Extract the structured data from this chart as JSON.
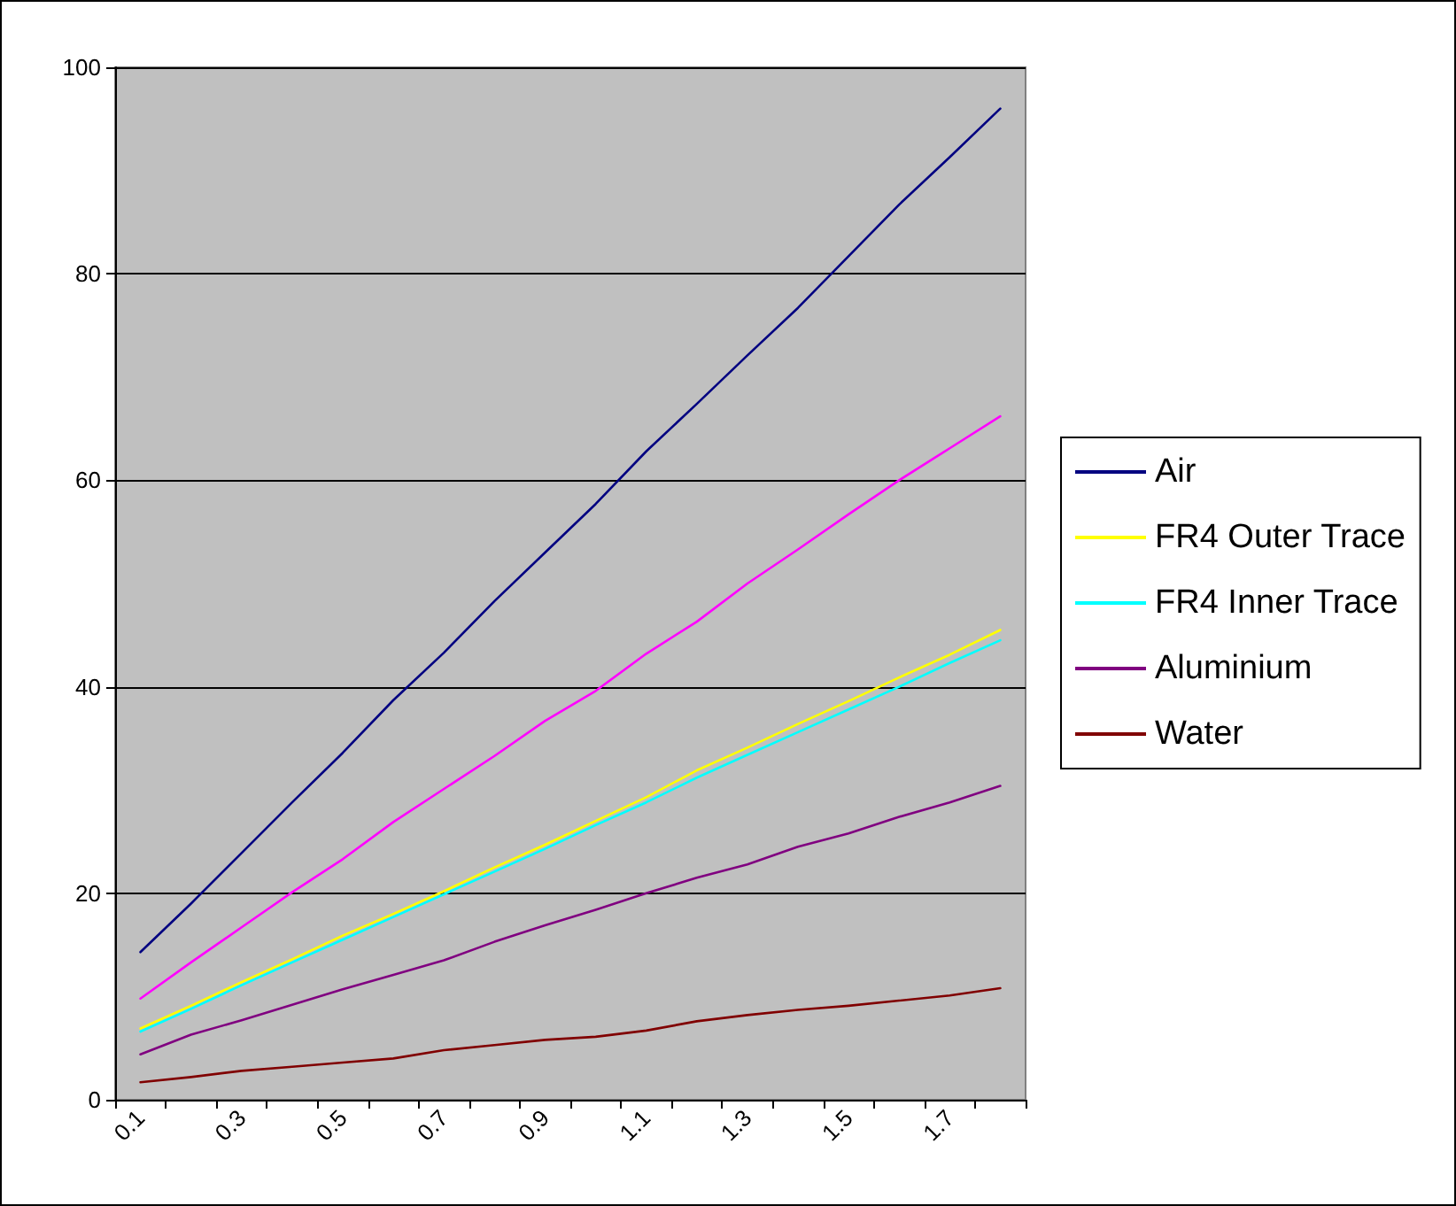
{
  "chart_data": {
    "type": "line",
    "categories": [
      "0.1",
      null,
      "0.3",
      null,
      "0.5",
      null,
      "0.7",
      null,
      "0.9",
      null,
      "1.1",
      null,
      "1.3",
      null,
      "1.5",
      null,
      "1.7",
      null
    ],
    "series": [
      {
        "name": "Air",
        "color": "#000080",
        "values": [
          14.3,
          19.0,
          23.9,
          28.8,
          33.6,
          38.7,
          43.3,
          48.3,
          53.0,
          57.7,
          62.8,
          67.4,
          72.1,
          76.7,
          81.7,
          86.7,
          91.3,
          96.0
        ]
      },
      {
        "color": "#ff00ff",
        "values": [
          9.8,
          13.3,
          16.7,
          20.1,
          23.3,
          26.9,
          30.1,
          33.3,
          36.7,
          39.6,
          43.2,
          46.3,
          50.0,
          53.3,
          56.7,
          60.0,
          63.1,
          66.2
        ]
      },
      {
        "name": "FR4 Outer Trace",
        "color": "#ffff00",
        "values": [
          6.9,
          9.1,
          11.4,
          13.6,
          15.9,
          18.0,
          20.2,
          22.5,
          24.7,
          27.0,
          29.3,
          31.9,
          34.1,
          36.4,
          38.6,
          40.9,
          43.1,
          45.5
        ]
      },
      {
        "name": "FR4 Inner Trace",
        "color": "#00ffff",
        "values": [
          6.6,
          8.8,
          11.1,
          13.3,
          15.5,
          17.7,
          19.9,
          22.1,
          24.3,
          26.6,
          28.8,
          31.2,
          33.4,
          35.6,
          37.8,
          40.0,
          42.3,
          44.5
        ]
      },
      {
        "name": "Aluminium",
        "color": "#800080",
        "values": [
          4.4,
          6.3,
          7.7,
          9.2,
          10.7,
          12.1,
          13.5,
          15.3,
          16.9,
          18.4,
          20.0,
          21.5,
          22.8,
          24.5,
          25.8,
          27.4,
          28.8,
          30.4
        ]
      },
      {
        "name": "Water",
        "color": "#800000",
        "values": [
          1.7,
          2.2,
          2.8,
          3.2,
          3.6,
          4.0,
          4.8,
          5.3,
          5.8,
          6.1,
          6.7,
          7.6,
          8.2,
          8.7,
          9.1,
          9.6,
          10.1,
          10.8
        ]
      }
    ],
    "ylim": [
      0,
      100
    ],
    "yticks": [
      0,
      20,
      40,
      60,
      80,
      100
    ],
    "grid": "y",
    "legend": "right",
    "marker": "none",
    "line_style": "solid"
  }
}
